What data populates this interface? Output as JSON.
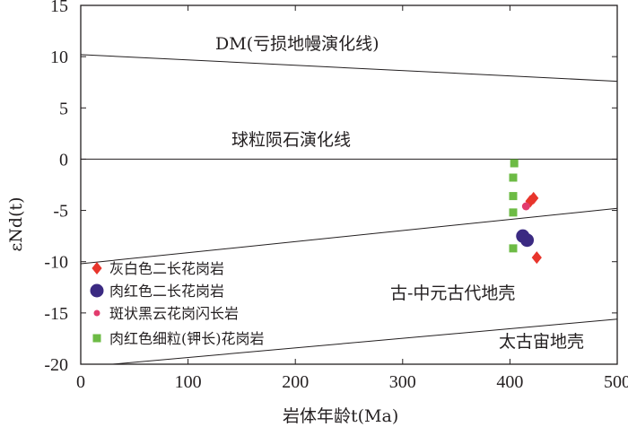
{
  "chart_data": {
    "type": "scatter",
    "xlabel": "岩体年龄t(Ma)",
    "ylabel": "εNd(t)",
    "xlim": [
      0,
      500
    ],
    "ylim": [
      -20,
      15
    ],
    "xticks": [
      0,
      100,
      200,
      300,
      400,
      500
    ],
    "yticks": [
      15,
      10,
      5,
      0,
      -5,
      -10,
      -15,
      -20
    ],
    "xtick_labels": [
      "0",
      "100",
      "200",
      "300",
      "400",
      "500"
    ],
    "ytick_labels": [
      "15",
      "10",
      "5",
      "0",
      "-5",
      "-10",
      "-15",
      "-20"
    ],
    "grid": false,
    "legend_position": "lower-left",
    "series": [
      {
        "name": "灰白色二长花岗岩",
        "marker": "diamond",
        "color": "#e8352c",
        "points": [
          [
            422,
            -3.8
          ],
          [
            419,
            -4.1
          ],
          [
            425,
            -9.6
          ]
        ]
      },
      {
        "name": "肉红色二长花岗岩",
        "marker": "circle",
        "color": "#3b2a82",
        "points": [
          [
            412,
            -7.5
          ],
          [
            416,
            -7.9
          ]
        ]
      },
      {
        "name": "斑状黑云花岗闪长岩",
        "marker": "small-circle",
        "color": "#e23c6d",
        "points": [
          [
            415,
            -4.6
          ]
        ]
      },
      {
        "name": "肉红色细粒(钾长)花岗岩",
        "marker": "square",
        "color": "#6dbb45",
        "points": [
          [
            404,
            -0.4
          ],
          [
            403,
            -1.8
          ],
          [
            403,
            -3.6
          ],
          [
            403,
            -5.2
          ],
          [
            403,
            -8.7
          ]
        ]
      }
    ],
    "reference_lines": [
      {
        "label": "DM(亏损地幔演化线)",
        "from": [
          0,
          10.2
        ],
        "to": [
          500,
          7.6
        ]
      },
      {
        "label": "球粒陨石演化线",
        "from": [
          0,
          0
        ],
        "to": [
          500,
          0
        ]
      },
      {
        "label": "",
        "from": [
          0,
          -10.2
        ],
        "to": [
          500,
          -4.8
        ]
      },
      {
        "label": "",
        "from": [
          30,
          -20
        ],
        "to": [
          500,
          -15.6
        ]
      }
    ],
    "region_labels": [
      "古-中元古代地壳",
      "太古宙地壳"
    ]
  }
}
